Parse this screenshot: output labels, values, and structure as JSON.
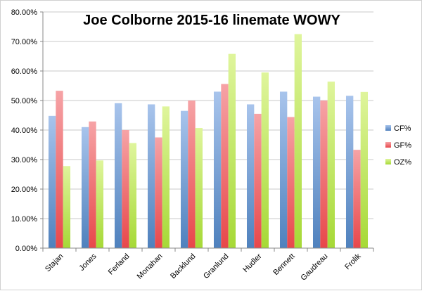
{
  "chart_data": {
    "type": "bar",
    "title": "Joe Colborne 2015-16 linemate WOWY",
    "xlabel": "",
    "ylabel": "",
    "ylim": [
      0,
      80
    ],
    "y_ticks": [
      0,
      10,
      20,
      30,
      40,
      50,
      60,
      70,
      80
    ],
    "y_tick_labels": [
      "0.00%",
      "10.00%",
      "20.00%",
      "30.00%",
      "40.00%",
      "50.00%",
      "60.00%",
      "70.00%",
      "80.00%"
    ],
    "grid": true,
    "legend_position": "right",
    "categories": [
      "Stajan",
      "Jones",
      "Ferland",
      "Monahan",
      "Backlund",
      "Granlund",
      "Hudler",
      "Bennett",
      "Gaudreau",
      "Frolik"
    ],
    "series": [
      {
        "name": "CF%",
        "color": "#4f81bd",
        "values": [
          44.8,
          41.0,
          49.1,
          48.7,
          46.5,
          53.0,
          48.7,
          53.0,
          51.3,
          51.6
        ]
      },
      {
        "name": "GF%",
        "color": "#e8474a",
        "values": [
          53.3,
          42.9,
          40.0,
          37.5,
          50.0,
          55.6,
          45.5,
          44.4,
          50.0,
          33.3
        ]
      },
      {
        "name": "OZ%",
        "color": "#a6d936",
        "values": [
          27.8,
          29.7,
          35.6,
          48.0,
          40.7,
          65.8,
          59.5,
          72.5,
          56.4,
          52.9
        ]
      }
    ]
  }
}
